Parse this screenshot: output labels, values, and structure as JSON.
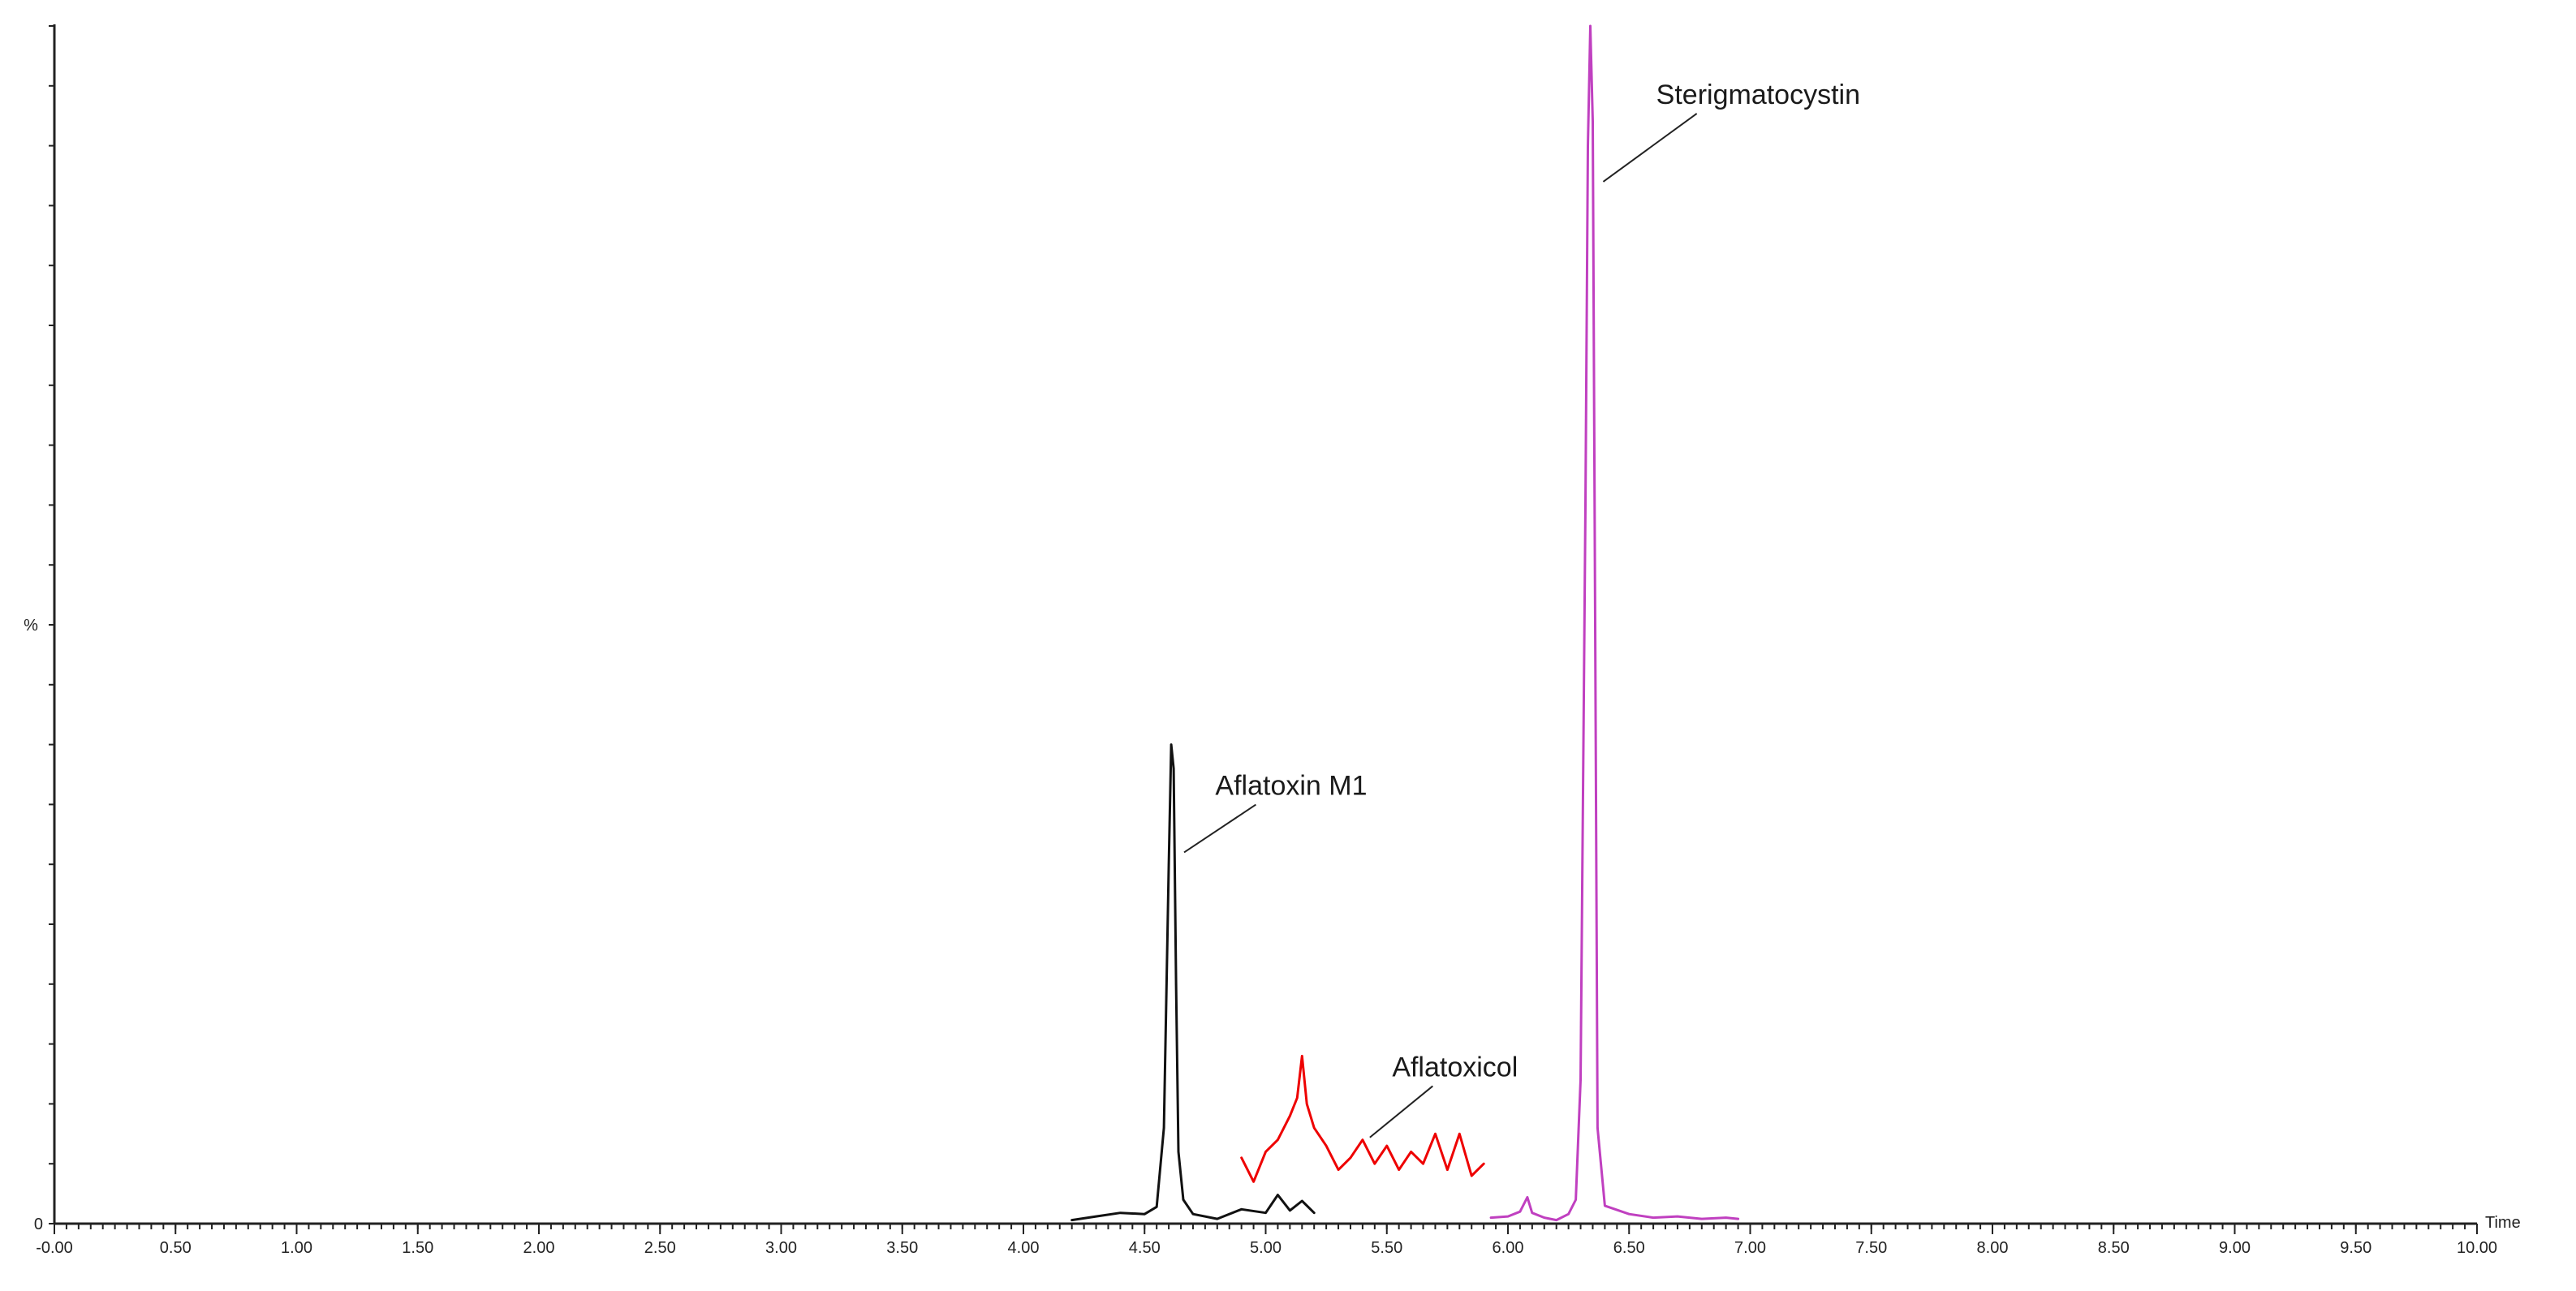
{
  "chart_data": {
    "type": "line",
    "xlabel": "Time",
    "ylabel": "%",
    "xlim": [
      0.0,
      10.0
    ],
    "ylim": [
      0,
      100
    ],
    "x_ticks": [
      "-0.00",
      "0.50",
      "1.00",
      "1.50",
      "2.00",
      "2.50",
      "3.00",
      "3.50",
      "4.00",
      "4.50",
      "5.00",
      "5.50",
      "6.00",
      "6.50",
      "7.00",
      "7.50",
      "8.00",
      "8.50",
      "9.00",
      "9.50",
      "10.00"
    ],
    "y_tick_label_zero": "0",
    "series": [
      {
        "name": "Aflatoxin M1",
        "color": "#111111",
        "x": [
          4.2,
          4.3,
          4.4,
          4.5,
          4.55,
          4.58,
          4.6,
          4.61,
          4.62,
          4.63,
          4.64,
          4.66,
          4.7,
          4.8,
          4.9,
          5.0,
          5.05,
          5.1,
          5.15,
          5.2
        ],
        "y": [
          0.3,
          0.6,
          0.9,
          0.8,
          1.4,
          8,
          30,
          40,
          38,
          20,
          6,
          2,
          0.8,
          0.4,
          1.2,
          0.9,
          2.4,
          1.1,
          1.9,
          0.9
        ]
      },
      {
        "name": "Aflatoxicol",
        "color": "#ee0000",
        "x": [
          4.9,
          4.95,
          5.0,
          5.05,
          5.1,
          5.13,
          5.15,
          5.17,
          5.2,
          5.25,
          5.3,
          5.35,
          5.4,
          5.45,
          5.5,
          5.55,
          5.6,
          5.65,
          5.7,
          5.75,
          5.8,
          5.85,
          5.9
        ],
        "y": [
          5.5,
          3.5,
          6,
          7,
          9,
          10.5,
          14,
          10,
          8,
          6.5,
          4.5,
          5.5,
          7,
          5,
          6.5,
          4.5,
          6,
          5,
          7.5,
          4.5,
          7.5,
          4,
          5
        ]
      },
      {
        "name": "Sterigmatocystin",
        "color": "#c040c0",
        "x": [
          5.93,
          6.0,
          6.05,
          6.08,
          6.1,
          6.15,
          6.2,
          6.25,
          6.28,
          6.3,
          6.32,
          6.33,
          6.34,
          6.35,
          6.36,
          6.37,
          6.4,
          6.5,
          6.6,
          6.7,
          6.8,
          6.9,
          6.95
        ],
        "y": [
          0.5,
          0.6,
          1,
          2.2,
          0.9,
          0.5,
          0.3,
          0.8,
          2,
          12,
          60,
          90,
          100,
          92,
          50,
          8,
          1.5,
          0.8,
          0.5,
          0.6,
          0.4,
          0.5,
          0.4
        ]
      }
    ],
    "annotations": [
      {
        "text": "Sterigmatocystin",
        "x": 6.88,
        "y": 93.5
      },
      {
        "text": "Aflatoxin M1",
        "x": 5.06,
        "y": 35.8
      },
      {
        "text": "Aflatoxicol",
        "x": 5.79,
        "y": 12.3
      }
    ]
  }
}
